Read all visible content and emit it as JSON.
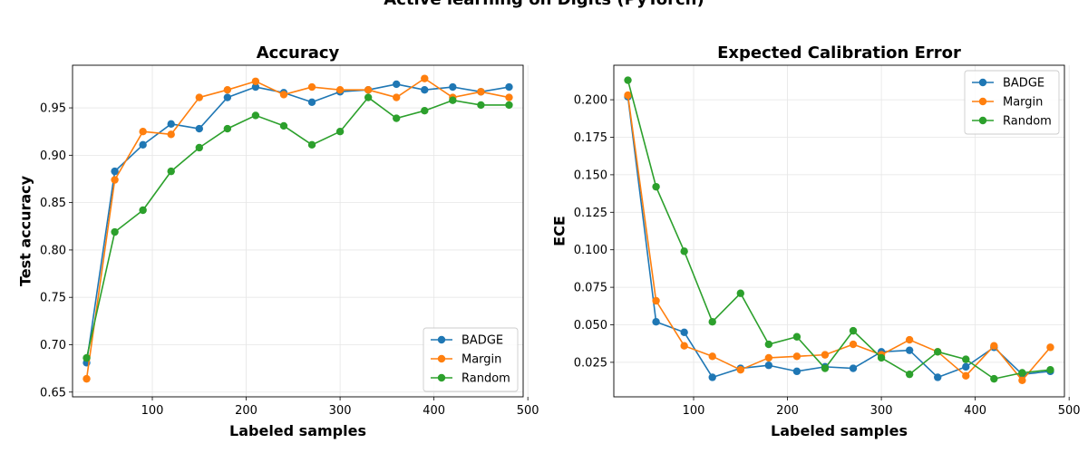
{
  "figure_title": "Active learning on Digits (PyTorch)",
  "chart_data": [
    {
      "type": "line",
      "title": "Accuracy",
      "xlabel": "Labeled samples",
      "ylabel": "Test accuracy",
      "xlim": [
        15,
        495
      ],
      "ylim": [
        0.645,
        0.995
      ],
      "xticks": [
        100,
        200,
        300,
        400,
        500
      ],
      "yticks": [
        0.65,
        0.7,
        0.75,
        0.8,
        0.85,
        0.9,
        0.95
      ],
      "ytick_labels": [
        "0.65",
        "0.70",
        "0.75",
        "0.80",
        "0.85",
        "0.90",
        "0.95"
      ],
      "grid": true,
      "legend_position": "bottom-right",
      "x": [
        30,
        60,
        90,
        120,
        150,
        180,
        210,
        240,
        270,
        300,
        330,
        360,
        390,
        420,
        450,
        480
      ],
      "series": [
        {
          "name": "BADGE",
          "color": "#1f77b4",
          "values": [
            0.681,
            0.883,
            0.911,
            0.933,
            0.928,
            0.961,
            0.972,
            0.966,
            0.956,
            0.967,
            0.969,
            0.975,
            0.969,
            0.972,
            0.967,
            0.972
          ]
        },
        {
          "name": "Margin",
          "color": "#ff7f0e",
          "values": [
            0.664,
            0.874,
            0.925,
            0.922,
            0.961,
            0.969,
            0.978,
            0.964,
            0.972,
            0.969,
            0.969,
            0.961,
            0.981,
            0.961,
            0.967,
            0.961
          ]
        },
        {
          "name": "Random",
          "color": "#2ca02c",
          "values": [
            0.686,
            0.819,
            0.842,
            0.883,
            0.908,
            0.928,
            0.942,
            0.931,
            0.911,
            0.925,
            0.961,
            0.939,
            0.947,
            0.958,
            0.953,
            0.953
          ]
        }
      ]
    },
    {
      "type": "line",
      "title": "Expected Calibration Error",
      "xlabel": "Labeled samples",
      "ylabel": "ECE",
      "xlim": [
        15,
        495
      ],
      "ylim": [
        0.002,
        0.223
      ],
      "xticks": [
        100,
        200,
        300,
        400,
        500
      ],
      "yticks": [
        0.025,
        0.05,
        0.075,
        0.1,
        0.125,
        0.15,
        0.175,
        0.2
      ],
      "ytick_labels": [
        "0.025",
        "0.050",
        "0.075",
        "0.100",
        "0.125",
        "0.150",
        "0.175",
        "0.200"
      ],
      "grid": true,
      "legend_position": "top-right",
      "x": [
        30,
        60,
        90,
        120,
        150,
        180,
        210,
        240,
        270,
        300,
        330,
        360,
        390,
        420,
        450,
        480
      ],
      "series": [
        {
          "name": "BADGE",
          "color": "#1f77b4",
          "values": [
            0.202,
            0.052,
            0.045,
            0.015,
            0.021,
            0.023,
            0.019,
            0.022,
            0.021,
            0.032,
            0.033,
            0.015,
            0.022,
            0.035,
            0.017,
            0.019
          ]
        },
        {
          "name": "Margin",
          "color": "#ff7f0e",
          "values": [
            0.203,
            0.066,
            0.036,
            0.029,
            0.02,
            0.028,
            0.029,
            0.03,
            0.037,
            0.03,
            0.04,
            0.032,
            0.016,
            0.036,
            0.013,
            0.035
          ]
        },
        {
          "name": "Random",
          "color": "#2ca02c",
          "values": [
            0.213,
            0.142,
            0.099,
            0.052,
            0.071,
            0.037,
            0.042,
            0.021,
            0.046,
            0.028,
            0.017,
            0.032,
            0.027,
            0.014,
            0.018,
            0.02
          ]
        }
      ]
    }
  ]
}
